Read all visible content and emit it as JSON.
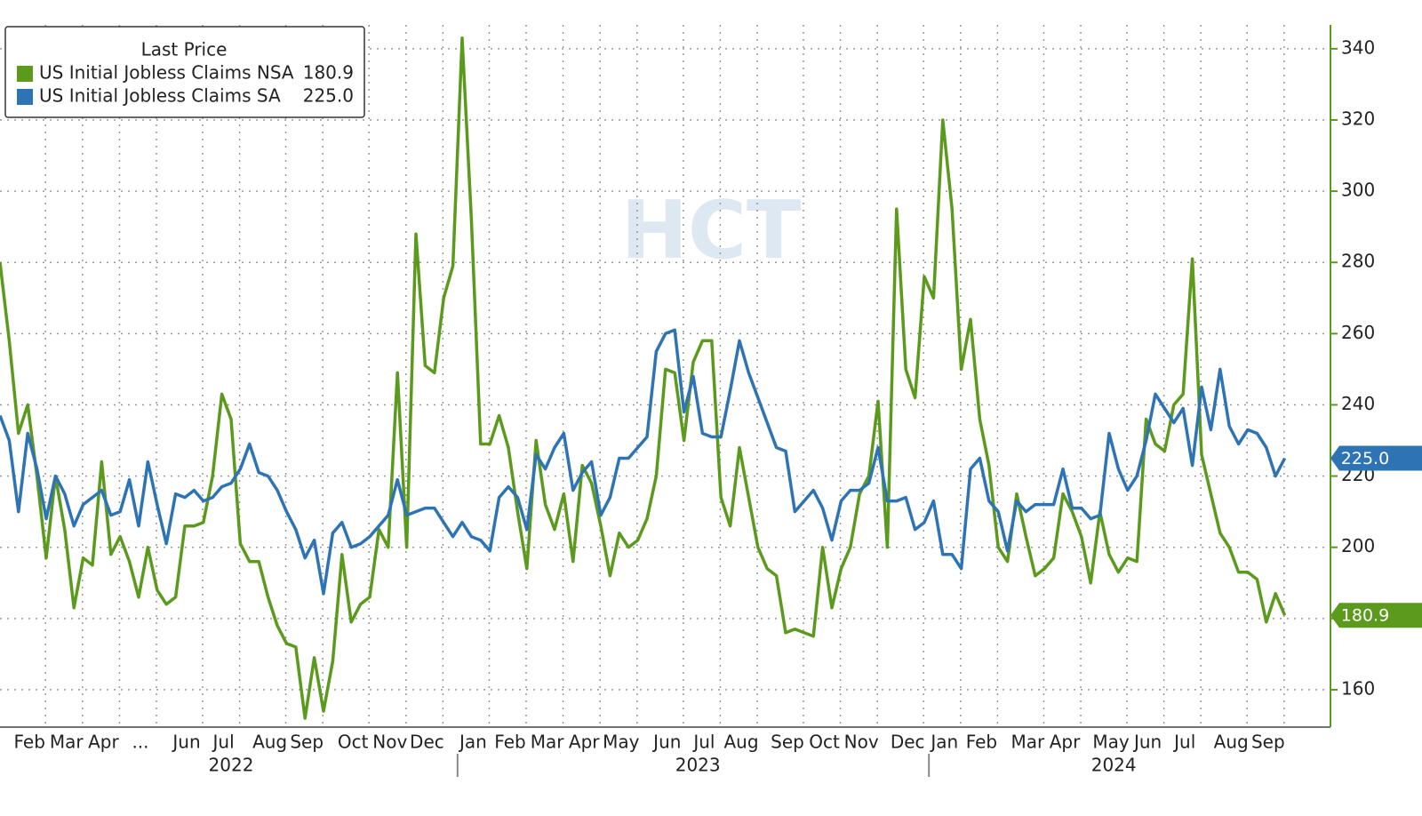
{
  "chart_data": {
    "type": "line",
    "legend_title": "Last Price",
    "watermark": "HCT",
    "categories": [
      null,
      null,
      null,
      "Feb",
      null,
      null,
      null,
      "Mar",
      null,
      null,
      null,
      "Apr",
      null,
      null,
      null,
      "...",
      null,
      null,
      null,
      null,
      "Jun",
      null,
      null,
      null,
      "Jul",
      null,
      null,
      null,
      null,
      "Aug",
      null,
      null,
      null,
      "Sep",
      null,
      null,
      null,
      null,
      "Oct",
      null,
      null,
      null,
      "Nov",
      null,
      null,
      null,
      "Dec",
      null,
      null,
      null,
      null,
      "Jan",
      null,
      null,
      null,
      "Feb",
      null,
      null,
      null,
      "Mar",
      null,
      null,
      null,
      "Apr",
      null,
      null,
      null,
      "May",
      null,
      null,
      null,
      null,
      "Jun",
      null,
      null,
      null,
      "Jul",
      null,
      null,
      null,
      "Aug",
      null,
      null,
      null,
      null,
      "Sep",
      null,
      null,
      null,
      "Oct",
      null,
      null,
      null,
      "Nov",
      null,
      null,
      null,
      null,
      "Dec",
      null,
      null,
      null,
      "Jan",
      null,
      null,
      null,
      "Feb",
      null,
      null,
      null,
      null,
      "Mar",
      null,
      null,
      null,
      "Apr",
      null,
      null,
      null,
      null,
      "May",
      null,
      null,
      null,
      "Jun",
      null,
      null,
      null,
      "Jul",
      null,
      null,
      null,
      null,
      "Aug",
      null,
      null,
      null,
      "Sep",
      null,
      null
    ],
    "x_groups": [
      {
        "label": "2022",
        "from": 0,
        "to": 49
      },
      {
        "label": "2023",
        "from": 50,
        "to": 100
      },
      {
        "label": "2024",
        "from": 101,
        "to": 139
      }
    ],
    "series": [
      {
        "name": "US Initial Jobless Claims NSA",
        "color": "#5b9a1d",
        "last_label": "180.9",
        "values": [
          280,
          258,
          232,
          240,
          220,
          197,
          220,
          205,
          183,
          197,
          195,
          224,
          198,
          203,
          196,
          186,
          200,
          188,
          184,
          186,
          206,
          206,
          207,
          220,
          243,
          236,
          201,
          196,
          196,
          186,
          178,
          173,
          172,
          152,
          169,
          154,
          168,
          198,
          179,
          184,
          186,
          205,
          200,
          249,
          200,
          288,
          251,
          249,
          270,
          279,
          343,
          292,
          229,
          229,
          237,
          228,
          210,
          194,
          230,
          212,
          205,
          215,
          196,
          223,
          218,
          206,
          192,
          204,
          200,
          202,
          208,
          220,
          250,
          249,
          230,
          252,
          258,
          258,
          214,
          206,
          228,
          214,
          200,
          194,
          192,
          176,
          177,
          176,
          175,
          200,
          183,
          194,
          200,
          215,
          220,
          241,
          200,
          295,
          250,
          242,
          276,
          270,
          320,
          295,
          250,
          264,
          236,
          223,
          200,
          196,
          215,
          203,
          192,
          194,
          197,
          215,
          210,
          203,
          190,
          210,
          198,
          193,
          197,
          196,
          236,
          229,
          227,
          240,
          243,
          281,
          226,
          215,
          204,
          200,
          193,
          193,
          191,
          179,
          187,
          180.9
        ]
      },
      {
        "name": "US Initial Jobless Claims SA",
        "color": "#2e74b5",
        "last_label": "225.0",
        "values": [
          237,
          230,
          210,
          232,
          222,
          208,
          220,
          215,
          206,
          212,
          214,
          216,
          209,
          210,
          219,
          206,
          224,
          212,
          201,
          215,
          214,
          216,
          213,
          214,
          217,
          218,
          222,
          229,
          221,
          220,
          216,
          210,
          205,
          197,
          202,
          187,
          204,
          207,
          200,
          201,
          203,
          206,
          209,
          219,
          209,
          210,
          211,
          211,
          207,
          203,
          207,
          203,
          202,
          199,
          214,
          217,
          214,
          205,
          226,
          222,
          228,
          232,
          216,
          221,
          224,
          209,
          214,
          225,
          225,
          228,
          231,
          255,
          260,
          261,
          238,
          248,
          232,
          231,
          231,
          244,
          258,
          249,
          242,
          235,
          228,
          227,
          210,
          213,
          216,
          211,
          202,
          213,
          216,
          216,
          218,
          228,
          213,
          213,
          214,
          205,
          207,
          213,
          198,
          198,
          194,
          222,
          225,
          213,
          210,
          199,
          213,
          210,
          212,
          212,
          212,
          222,
          211,
          211,
          208,
          209,
          232,
          222,
          216,
          220,
          230,
          243,
          239,
          235,
          239,
          223,
          245,
          233,
          250,
          234,
          229,
          233,
          232,
          228,
          220,
          225.0
        ]
      }
    ],
    "ylim": [
      149.5,
      346.7
    ],
    "yticks": [
      160,
      180,
      200,
      220,
      240,
      260,
      280,
      300,
      320,
      340
    ],
    "grid": true,
    "legend": "top-left"
  }
}
